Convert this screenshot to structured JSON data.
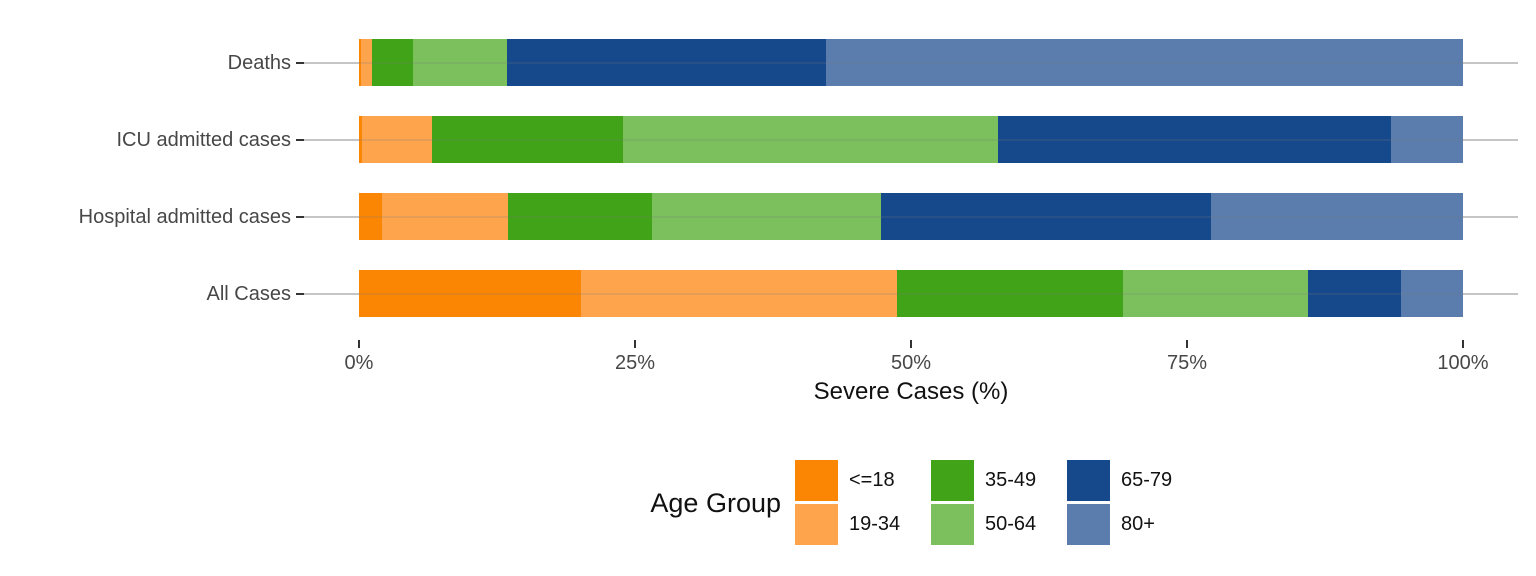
{
  "chart_data": {
    "type": "bar",
    "orientation": "horizontal",
    "stacked": true,
    "title": "",
    "xlabel": "Severe Cases (%)",
    "ylabel": "",
    "xlim": [
      0,
      100
    ],
    "grid": "horizontal category gridlines only",
    "categories": [
      "Deaths",
      "ICU admitted cases",
      "Hospital admitted cases",
      "All Cases"
    ],
    "groups": [
      "<=18",
      "19-34",
      "35-49",
      "50-64",
      "65-79",
      "80+"
    ],
    "palette": [
      "#fb8604",
      "#fda44d",
      "#41a317",
      "#7bc05d",
      "#16498c",
      "#5a7dae"
    ],
    "series": [
      {
        "name": "<=18",
        "color": "#fb8604",
        "values": [
          0.2,
          0.3,
          2.1,
          20.1
        ]
      },
      {
        "name": "19-34",
        "color": "#fda44d",
        "values": [
          1.0,
          6.3,
          11.4,
          28.6
        ]
      },
      {
        "name": "35-49",
        "color": "#41a317",
        "values": [
          3.7,
          17.3,
          13.0,
          20.5
        ]
      },
      {
        "name": "50-64",
        "color": "#7bc05d",
        "values": [
          8.5,
          34.0,
          20.8,
          16.8
        ]
      },
      {
        "name": "65-79",
        "color": "#16498c",
        "values": [
          28.9,
          35.6,
          29.9,
          8.4
        ]
      },
      {
        "name": "80+",
        "color": "#5a7dae",
        "values": [
          57.7,
          6.5,
          22.8,
          5.6
        ]
      }
    ],
    "x_ticks": [
      {
        "value": 0,
        "label": "0%"
      },
      {
        "value": 25,
        "label": "25%"
      },
      {
        "value": 50,
        "label": "50%"
      },
      {
        "value": 75,
        "label": "75%"
      },
      {
        "value": 100,
        "label": "100%"
      }
    ],
    "legend": {
      "title": "Age Group",
      "position": "bottom"
    }
  }
}
